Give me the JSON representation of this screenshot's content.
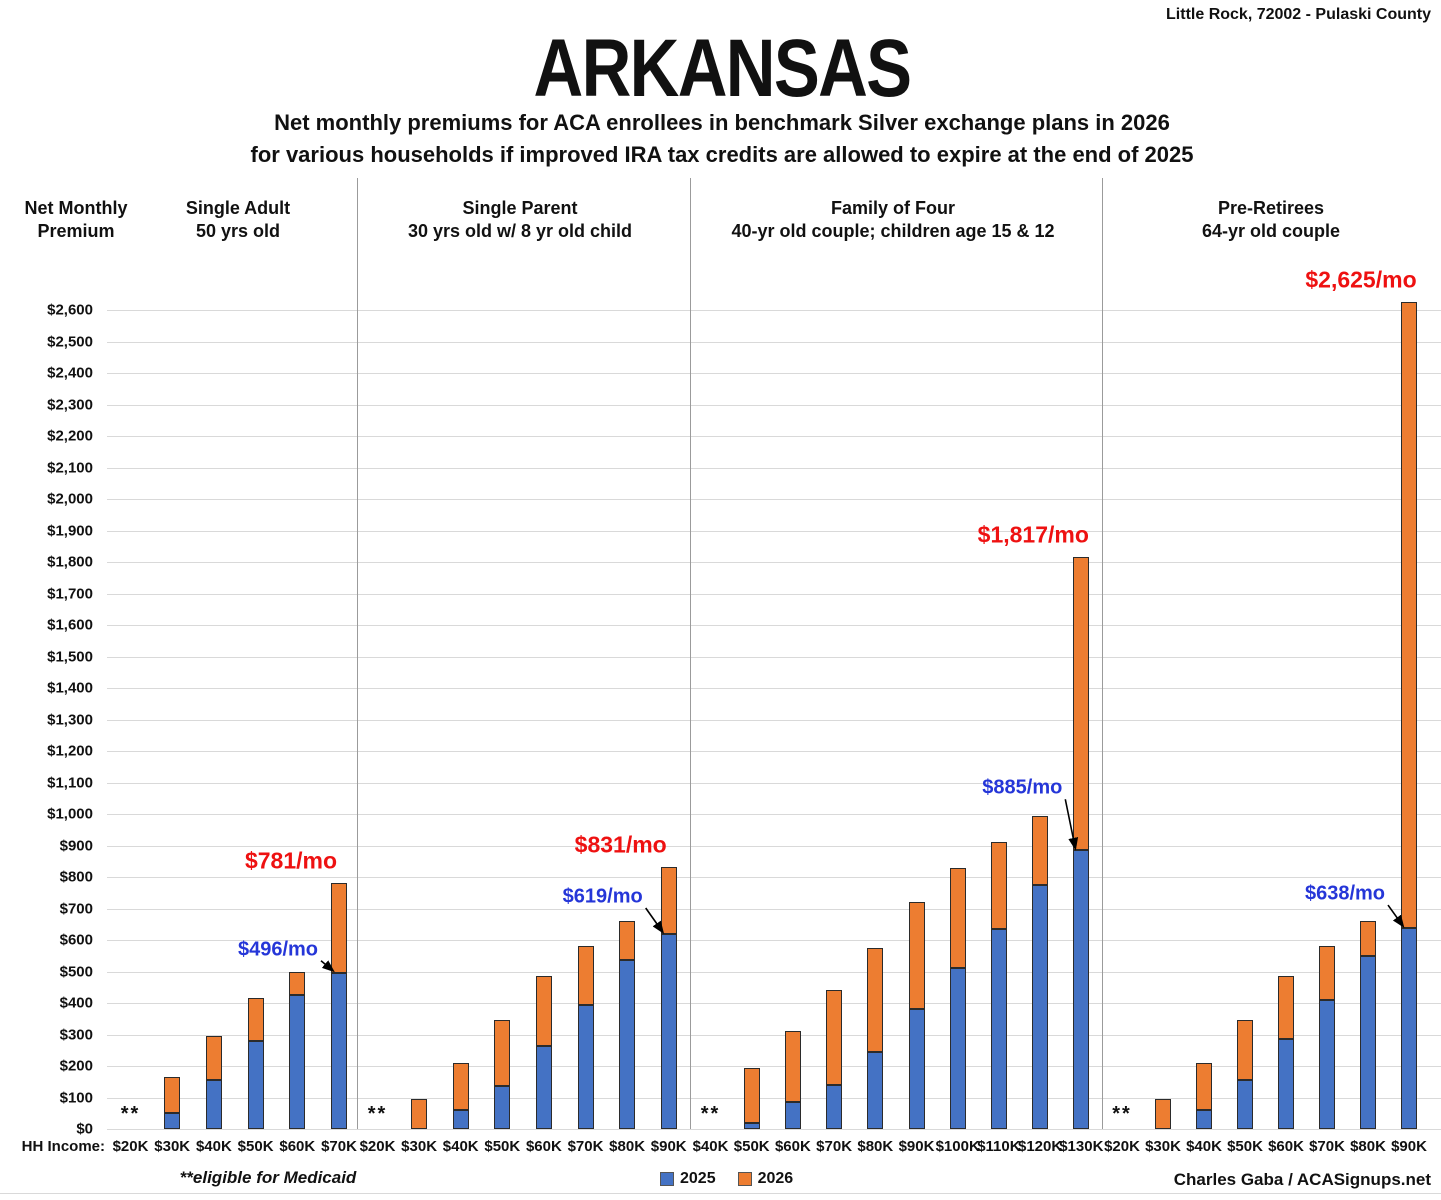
{
  "location_label": "Little Rock, 72002 - Pulaski County",
  "title": "ARKANSAS",
  "subtitle_line1": "Net monthly premiums for ACA enrollees in benchmark Silver exchange plans in 2026",
  "subtitle_line2": "for various households if improved IRA tax credits are allowed to expire at the end of 2025",
  "y_axis_title_line1": "Net Monthly",
  "y_axis_title_line2": "Premium",
  "x_axis_label": "HH Income:",
  "medicaid_marker": "**",
  "medicaid_note": "**eligible for Medicaid",
  "attribution": "Charles Gaba / ACASignups.net",
  "legend": [
    {
      "label": "2025",
      "color": "#4472C4"
    },
    {
      "label": "2026",
      "color": "#ED7D31"
    }
  ],
  "colors": {
    "bar_2025": "#4472C4",
    "bar_2026": "#ED7D31",
    "callout_2026_text": "#ee1111",
    "callout_2025_text": "#2536d8",
    "gridline": "#d9d9d9",
    "divider": "#9b9b9b"
  },
  "chart_data": {
    "type": "bar",
    "stacked": true,
    "series_names": [
      "2025",
      "2026"
    ],
    "note": "premium_2026 values are total bar heights; orange segment = 2026 minus 2025",
    "y_axis": {
      "min": 0,
      "max": 2600,
      "step": 100,
      "tick_prefix": "$",
      "gridlines": true
    },
    "groups": [
      {
        "header_line1": "Single Adult",
        "header_line2": "50 yrs old",
        "callout_2026": "$781/mo",
        "callout_2025": "$496/mo",
        "bars": [
          {
            "income": "$20K",
            "medicaid": true
          },
          {
            "income": "$30K",
            "premium_2025": 50,
            "premium_2026": 165
          },
          {
            "income": "$40K",
            "premium_2025": 155,
            "premium_2026": 295
          },
          {
            "income": "$50K",
            "premium_2025": 280,
            "premium_2026": 415
          },
          {
            "income": "$60K",
            "premium_2025": 425,
            "premium_2026": 500
          },
          {
            "income": "$70K",
            "premium_2025": 496,
            "premium_2026": 781
          }
        ]
      },
      {
        "header_line1": "Single Parent",
        "header_line2": "30 yrs old w/ 8 yr old child",
        "callout_2026": "$831/mo",
        "callout_2025": "$619/mo",
        "bars": [
          {
            "income": "$20K",
            "medicaid": true
          },
          {
            "income": "$30K",
            "premium_2025": 0,
            "premium_2026": 95
          },
          {
            "income": "$40K",
            "premium_2025": 60,
            "premium_2026": 210
          },
          {
            "income": "$50K",
            "premium_2025": 135,
            "premium_2026": 345
          },
          {
            "income": "$60K",
            "premium_2025": 265,
            "premium_2026": 487
          },
          {
            "income": "$70K",
            "premium_2025": 395,
            "premium_2026": 580
          },
          {
            "income": "$80K",
            "premium_2025": 535,
            "premium_2026": 660
          },
          {
            "income": "$90K",
            "premium_2025": 619,
            "premium_2026": 831
          }
        ]
      },
      {
        "header_line1": "Family of Four",
        "header_line2": "40-yr old couple; children age 15 & 12",
        "callout_2026": "$1,817/mo",
        "callout_2025": "$885/mo",
        "bars": [
          {
            "income": "$40K",
            "medicaid": true
          },
          {
            "income": "$50K",
            "premium_2025": 20,
            "premium_2026": 195
          },
          {
            "income": "$60K",
            "premium_2025": 85,
            "premium_2026": 310
          },
          {
            "income": "$70K",
            "premium_2025": 140,
            "premium_2026": 440
          },
          {
            "income": "$80K",
            "premium_2025": 245,
            "premium_2026": 575
          },
          {
            "income": "$90K",
            "premium_2025": 380,
            "premium_2026": 720
          },
          {
            "income": "$100K",
            "premium_2025": 510,
            "premium_2026": 830
          },
          {
            "income": "$110K",
            "premium_2025": 635,
            "premium_2026": 910
          },
          {
            "income": "$120K",
            "premium_2025": 775,
            "premium_2026": 995
          },
          {
            "income": "$130K",
            "premium_2025": 885,
            "premium_2026": 1817
          }
        ]
      },
      {
        "header_line1": "Pre-Retirees",
        "header_line2": "64-yr old couple",
        "callout_2026": "$2,625/mo",
        "callout_2025": "$638/mo",
        "bars": [
          {
            "income": "$20K",
            "medicaid": true
          },
          {
            "income": "$30K",
            "premium_2025": 0,
            "premium_2026": 95
          },
          {
            "income": "$40K",
            "premium_2025": 60,
            "premium_2026": 210
          },
          {
            "income": "$50K",
            "premium_2025": 155,
            "premium_2026": 345
          },
          {
            "income": "$60K",
            "premium_2025": 285,
            "premium_2026": 487
          },
          {
            "income": "$70K",
            "premium_2025": 410,
            "premium_2026": 580
          },
          {
            "income": "$80K",
            "premium_2025": 550,
            "premium_2026": 660
          },
          {
            "income": "$90K",
            "premium_2025": 638,
            "premium_2026": 2625
          }
        ]
      }
    ]
  }
}
